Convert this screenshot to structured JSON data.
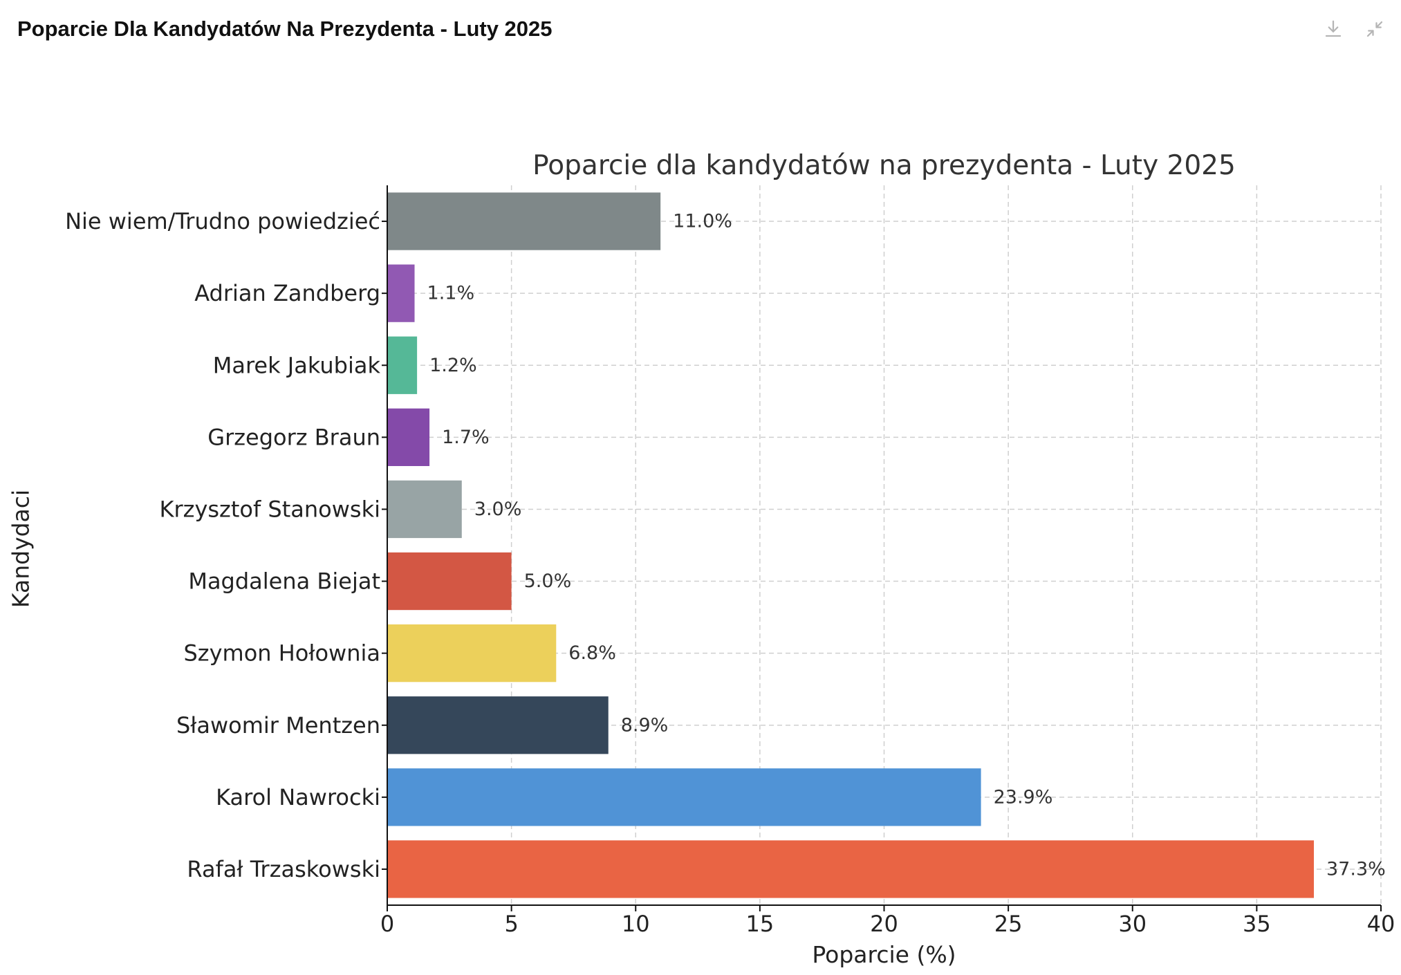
{
  "header": {
    "title": "Poparcie Dla Kandydatów Na Prezydenta - Luty 2025",
    "download_icon": "download-icon",
    "collapse_icon": "collapse-icon"
  },
  "chart_data": {
    "type": "bar",
    "orientation": "horizontal",
    "title": "Poparcie dla kandydatów na prezydenta - Luty 2025",
    "xlabel": "Poparcie (%)",
    "ylabel": "Kandydaci",
    "xlim": [
      0,
      40
    ],
    "xticks": [
      "0",
      "5",
      "10",
      "15",
      "20",
      "25",
      "30",
      "35",
      "40"
    ],
    "grid": true,
    "categories": [
      "Rafał Trzaskowski",
      "Karol Nawrocki",
      "Sławomir Mentzen",
      "Szymon Hołownia",
      "Magdalena Biejat",
      "Krzysztof Stanowski",
      "Grzegorz Braun",
      "Marek Jakubiak",
      "Adrian Zandberg",
      "Nie wiem/Trudno powiedzieć"
    ],
    "values": [
      37.3,
      23.9,
      8.9,
      6.8,
      5.0,
      3.0,
      1.7,
      1.2,
      1.1,
      11.0
    ],
    "value_labels": [
      "37.3%",
      "23.9%",
      "8.9%",
      "6.8%",
      "5.0%",
      "3.0%",
      "1.7%",
      "1.2%",
      "1.1%",
      "11.0%"
    ],
    "colors": [
      "#e96444",
      "#5093d6",
      "#35475a",
      "#ecd05b",
      "#d35744",
      "#98a4a5",
      "#844aa9",
      "#55b897",
      "#9159b3",
      "#7f8889"
    ]
  }
}
